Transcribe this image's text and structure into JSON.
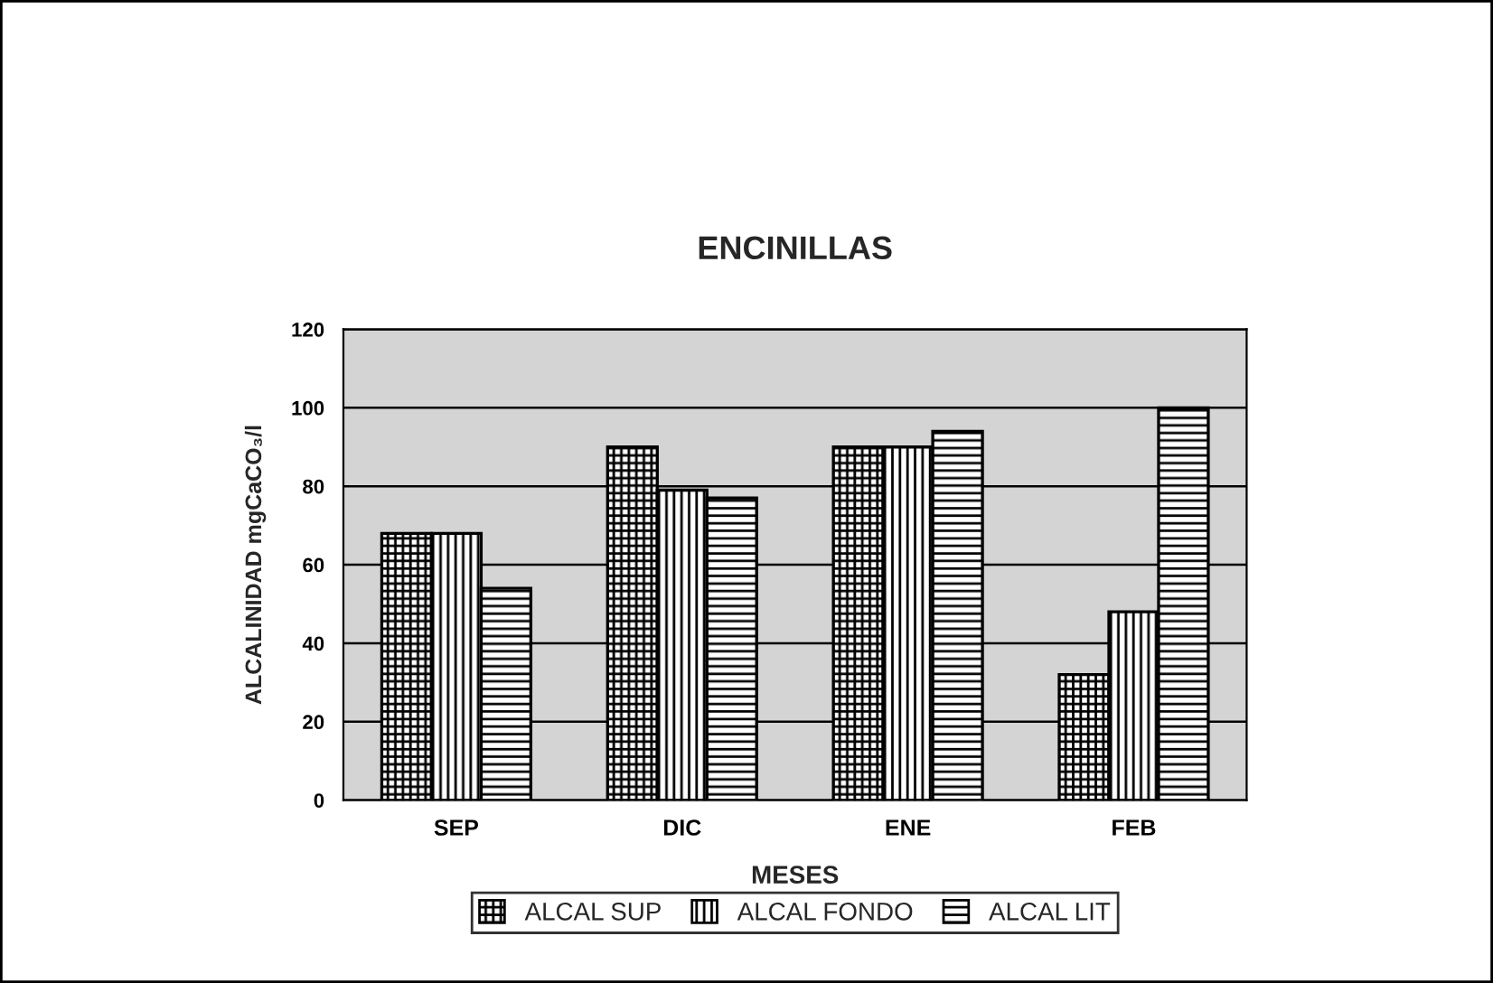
{
  "chart_data": {
    "type": "bar",
    "title": "ENCINILLAS",
    "xlabel": "MESES",
    "ylabel": "ALCALINIDAD mgCaCO₃/l",
    "categories": [
      "SEP",
      "DIC",
      "ENE",
      "FEB"
    ],
    "series": [
      {
        "name": "ALCAL SUP",
        "color": "#000000",
        "values": [
          68,
          90,
          90,
          32
        ]
      },
      {
        "name": "ALCAL FONDO",
        "color": "#000000",
        "values": [
          68,
          79,
          90,
          48
        ]
      },
      {
        "name": "ALCAL LIT",
        "color": "#000000",
        "values": [
          54,
          77,
          94,
          100
        ]
      }
    ],
    "ylim": [
      0,
      120
    ],
    "yticks": [
      0,
      20,
      40,
      60,
      80,
      100,
      120
    ],
    "grid": "y",
    "legend": "bottom"
  }
}
